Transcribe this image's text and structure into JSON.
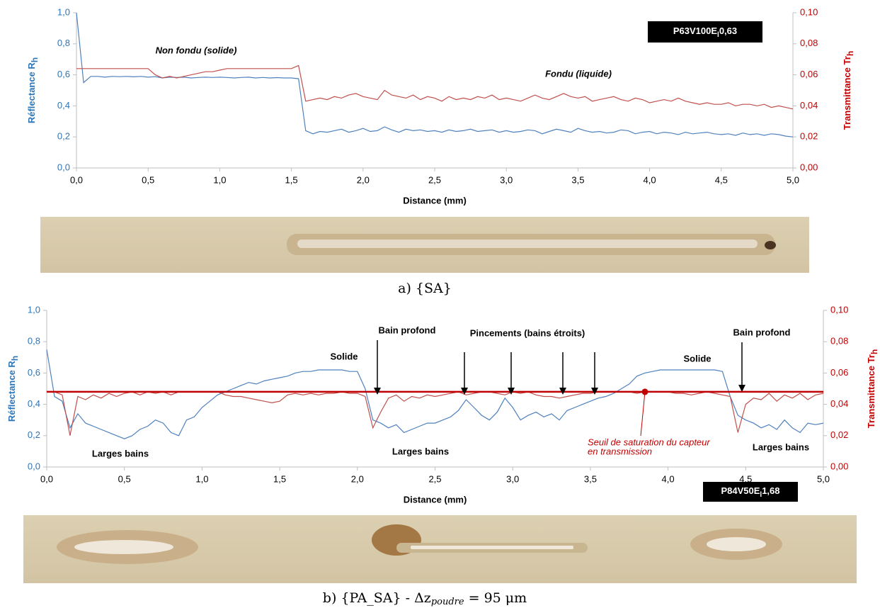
{
  "chart_data": [
    {
      "type": "line",
      "x": [
        0,
        0.05,
        0.1,
        0.15,
        0.2,
        0.25,
        0.3,
        0.35,
        0.4,
        0.45,
        0.5,
        0.55,
        0.6,
        0.65,
        0.7,
        0.75,
        0.8,
        0.85,
        0.9,
        0.95,
        1.0,
        1.05,
        1.1,
        1.15,
        1.2,
        1.25,
        1.3,
        1.35,
        1.4,
        1.45,
        1.5,
        1.55,
        1.6,
        1.65,
        1.7,
        1.75,
        1.8,
        1.85,
        1.9,
        1.95,
        2.0,
        2.05,
        2.1,
        2.15,
        2.2,
        2.25,
        2.3,
        2.35,
        2.4,
        2.45,
        2.5,
        2.55,
        2.6,
        2.65,
        2.7,
        2.75,
        2.8,
        2.85,
        2.9,
        2.95,
        3.0,
        3.05,
        3.1,
        3.15,
        3.2,
        3.25,
        3.3,
        3.35,
        3.4,
        3.45,
        3.5,
        3.55,
        3.6,
        3.65,
        3.7,
        3.75,
        3.8,
        3.85,
        3.9,
        3.95,
        4.0,
        4.05,
        4.1,
        4.15,
        4.2,
        4.25,
        4.3,
        4.35,
        4.4,
        4.45,
        4.5,
        4.55,
        4.6,
        4.65,
        4.7,
        4.75,
        4.8,
        4.85,
        4.9,
        4.95,
        5.0
      ],
      "series": [
        {
          "color": "#4f81bd",
          "values": [
            1.0,
            0.55,
            0.59,
            0.59,
            0.585,
            0.59,
            0.588,
            0.59,
            0.587,
            0.59,
            0.585,
            0.588,
            0.58,
            0.585,
            0.583,
            0.585,
            0.58,
            0.583,
            0.585,
            0.583,
            0.585,
            0.583,
            0.58,
            0.583,
            0.585,
            0.58,
            0.583,
            0.58,
            0.582,
            0.58,
            0.58,
            0.575,
            0.24,
            0.22,
            0.235,
            0.23,
            0.24,
            0.25,
            0.23,
            0.24,
            0.255,
            0.235,
            0.24,
            0.265,
            0.245,
            0.23,
            0.25,
            0.24,
            0.245,
            0.235,
            0.24,
            0.23,
            0.245,
            0.235,
            0.24,
            0.25,
            0.235,
            0.24,
            0.245,
            0.23,
            0.24,
            0.23,
            0.235,
            0.245,
            0.24,
            0.22,
            0.235,
            0.25,
            0.24,
            0.23,
            0.255,
            0.24,
            0.23,
            0.235,
            0.225,
            0.23,
            0.245,
            0.24,
            0.22,
            0.23,
            0.235,
            0.22,
            0.23,
            0.225,
            0.215,
            0.23,
            0.22,
            0.225,
            0.23,
            0.22,
            0.215,
            0.22,
            0.21,
            0.225,
            0.215,
            0.22,
            0.21,
            0.22,
            0.215,
            0.205,
            0.2
          ]
        },
        {
          "color": "#c0504d",
          "axis": "y2",
          "values": [
            0.064,
            0.064,
            0.064,
            0.064,
            0.064,
            0.064,
            0.064,
            0.064,
            0.064,
            0.064,
            0.064,
            0.06,
            0.058,
            0.059,
            0.058,
            0.059,
            0.06,
            0.061,
            0.062,
            0.062,
            0.063,
            0.064,
            0.064,
            0.064,
            0.064,
            0.064,
            0.064,
            0.064,
            0.064,
            0.064,
            0.064,
            0.066,
            0.043,
            0.044,
            0.045,
            0.044,
            0.046,
            0.045,
            0.047,
            0.048,
            0.046,
            0.045,
            0.044,
            0.05,
            0.047,
            0.046,
            0.045,
            0.047,
            0.044,
            0.046,
            0.045,
            0.043,
            0.046,
            0.044,
            0.045,
            0.044,
            0.046,
            0.045,
            0.047,
            0.044,
            0.045,
            0.044,
            0.043,
            0.045,
            0.047,
            0.045,
            0.044,
            0.046,
            0.048,
            0.046,
            0.045,
            0.046,
            0.043,
            0.044,
            0.045,
            0.046,
            0.044,
            0.043,
            0.045,
            0.044,
            0.042,
            0.043,
            0.044,
            0.043,
            0.045,
            0.043,
            0.042,
            0.041,
            0.042,
            0.041,
            0.041,
            0.042,
            0.04,
            0.041,
            0.041,
            0.04,
            0.041,
            0.039,
            0.04,
            0.039,
            0.038
          ]
        }
      ],
      "xlim": [
        0,
        5
      ],
      "ylim": [
        0,
        1
      ],
      "y2lim": [
        0,
        0.1
      ],
      "xticks": [
        {
          "value": 0,
          "label": "0,0"
        },
        {
          "value": 0.5,
          "label": "0,5"
        },
        {
          "value": 1,
          "label": "1,0"
        },
        {
          "value": 1.5,
          "label": "1,5"
        },
        {
          "value": 2,
          "label": "2,0"
        },
        {
          "value": 2.5,
          "label": "2,5"
        },
        {
          "value": 3,
          "label": "3,0"
        },
        {
          "value": 3.5,
          "label": "3,5"
        },
        {
          "value": 4,
          "label": "4,0"
        },
        {
          "value": 4.5,
          "label": "4,5"
        },
        {
          "value": 5,
          "label": "5,0"
        }
      ],
      "yticks": [
        {
          "value": 0,
          "label": "0,0"
        },
        {
          "value": 0.2,
          "label": "0,2"
        },
        {
          "value": 0.4,
          "label": "0,4"
        },
        {
          "value": 0.6,
          "label": "0,6"
        },
        {
          "value": 0.8,
          "label": "0,8"
        },
        {
          "value": 1,
          "label": "1,0"
        }
      ],
      "y2ticks": [
        {
          "value": 0,
          "label": "0,00"
        },
        {
          "value": 0.02,
          "label": "0,02"
        },
        {
          "value": 0.04,
          "label": "0,04"
        },
        {
          "value": 0.06,
          "label": "0,06"
        },
        {
          "value": 0.08,
          "label": "0,08"
        },
        {
          "value": 0.1,
          "label": "0,10"
        }
      ],
      "x_label": "Distance (mm)",
      "y_label": {
        "text": "Réflectance R",
        "sub": "h"
      },
      "y2_label": {
        "text": "Transmittance Tr",
        "sub": "h"
      },
      "tag": {
        "text": "P63V100E",
        "sub": "l",
        "rest": "0,63"
      },
      "annotations": [
        "Non fondu (solide)",
        "Fondu (liquide)"
      ]
    },
    {
      "type": "line",
      "x": [
        0,
        0.05,
        0.1,
        0.15,
        0.2,
        0.25,
        0.3,
        0.35,
        0.4,
        0.45,
        0.5,
        0.55,
        0.6,
        0.65,
        0.7,
        0.75,
        0.8,
        0.85,
        0.9,
        0.95,
        1.0,
        1.05,
        1.1,
        1.15,
        1.2,
        1.25,
        1.3,
        1.35,
        1.4,
        1.45,
        1.5,
        1.55,
        1.6,
        1.65,
        1.7,
        1.75,
        1.8,
        1.85,
        1.9,
        1.95,
        2.0,
        2.05,
        2.1,
        2.15,
        2.2,
        2.25,
        2.3,
        2.35,
        2.4,
        2.45,
        2.5,
        2.55,
        2.6,
        2.65,
        2.7,
        2.75,
        2.8,
        2.85,
        2.9,
        2.95,
        3.0,
        3.05,
        3.1,
        3.15,
        3.2,
        3.25,
        3.3,
        3.35,
        3.4,
        3.45,
        3.5,
        3.55,
        3.6,
        3.65,
        3.7,
        3.75,
        3.8,
        3.85,
        3.9,
        3.95,
        4.0,
        4.05,
        4.1,
        4.15,
        4.2,
        4.25,
        4.3,
        4.35,
        4.4,
        4.45,
        4.5,
        4.55,
        4.6,
        4.65,
        4.7,
        4.75,
        4.8,
        4.85,
        4.9,
        4.95,
        5.0
      ],
      "series": [
        {
          "color": "#4f81bd",
          "values": [
            0.75,
            0.45,
            0.42,
            0.25,
            0.34,
            0.28,
            0.26,
            0.24,
            0.22,
            0.2,
            0.18,
            0.2,
            0.24,
            0.26,
            0.3,
            0.28,
            0.22,
            0.2,
            0.3,
            0.32,
            0.38,
            0.42,
            0.46,
            0.48,
            0.5,
            0.52,
            0.54,
            0.53,
            0.55,
            0.56,
            0.57,
            0.58,
            0.6,
            0.61,
            0.61,
            0.62,
            0.62,
            0.62,
            0.62,
            0.61,
            0.61,
            0.5,
            0.3,
            0.28,
            0.25,
            0.27,
            0.22,
            0.24,
            0.26,
            0.28,
            0.28,
            0.3,
            0.32,
            0.36,
            0.43,
            0.38,
            0.33,
            0.3,
            0.35,
            0.44,
            0.38,
            0.3,
            0.33,
            0.35,
            0.32,
            0.34,
            0.3,
            0.36,
            0.38,
            0.4,
            0.42,
            0.44,
            0.45,
            0.47,
            0.5,
            0.53,
            0.58,
            0.6,
            0.61,
            0.62,
            0.62,
            0.62,
            0.62,
            0.62,
            0.62,
            0.62,
            0.62,
            0.61,
            0.45,
            0.33,
            0.3,
            0.28,
            0.25,
            0.27,
            0.24,
            0.3,
            0.25,
            0.22,
            0.28,
            0.27,
            0.28
          ]
        },
        {
          "color": "#c0504d",
          "axis": "y2",
          "values": [
            0.048,
            0.048,
            0.046,
            0.02,
            0.045,
            0.043,
            0.046,
            0.044,
            0.047,
            0.045,
            0.047,
            0.048,
            0.046,
            0.048,
            0.047,
            0.048,
            0.046,
            0.048,
            0.048,
            0.048,
            0.048,
            0.048,
            0.048,
            0.046,
            0.045,
            0.045,
            0.044,
            0.043,
            0.042,
            0.041,
            0.042,
            0.046,
            0.047,
            0.046,
            0.047,
            0.046,
            0.047,
            0.047,
            0.048,
            0.047,
            0.047,
            0.045,
            0.025,
            0.035,
            0.044,
            0.046,
            0.042,
            0.045,
            0.044,
            0.046,
            0.045,
            0.046,
            0.047,
            0.048,
            0.046,
            0.047,
            0.048,
            0.048,
            0.047,
            0.046,
            0.048,
            0.047,
            0.048,
            0.046,
            0.045,
            0.045,
            0.044,
            0.045,
            0.046,
            0.047,
            0.047,
            0.048,
            0.048,
            0.048,
            0.048,
            0.048,
            0.047,
            0.048,
            0.048,
            0.048,
            0.048,
            0.047,
            0.047,
            0.046,
            0.047,
            0.048,
            0.047,
            0.046,
            0.045,
            0.022,
            0.04,
            0.044,
            0.043,
            0.047,
            0.042,
            0.046,
            0.044,
            0.047,
            0.043,
            0.046,
            0.047
          ]
        }
      ],
      "threshold": {
        "value": 0.048,
        "color": "#c00000",
        "label": [
          "Seuil de saturation du capteur",
          "en transmission"
        ]
      },
      "xlim": [
        0,
        5
      ],
      "ylim": [
        0,
        1
      ],
      "y2lim": [
        0,
        0.1
      ],
      "xticks": [
        {
          "value": 0,
          "label": "0,0"
        },
        {
          "value": 0.5,
          "label": "0,5"
        },
        {
          "value": 1,
          "label": "1,0"
        },
        {
          "value": 1.5,
          "label": "1,5"
        },
        {
          "value": 2,
          "label": "2,0"
        },
        {
          "value": 2.5,
          "label": "2,5"
        },
        {
          "value": 3,
          "label": "3,0"
        },
        {
          "value": 3.5,
          "label": "3,5"
        },
        {
          "value": 4,
          "label": "4,0"
        },
        {
          "value": 4.5,
          "label": "4,5"
        },
        {
          "value": 5,
          "label": "5,0"
        }
      ],
      "yticks": [
        {
          "value": 0,
          "label": "0,0"
        },
        {
          "value": 0.2,
          "label": "0,2"
        },
        {
          "value": 0.4,
          "label": "0,4"
        },
        {
          "value": 0.6,
          "label": "0,6"
        },
        {
          "value": 0.8,
          "label": "0,8"
        },
        {
          "value": 1,
          "label": "1,0"
        }
      ],
      "y2ticks": [
        {
          "value": 0,
          "label": "0,00"
        },
        {
          "value": 0.02,
          "label": "0,02"
        },
        {
          "value": 0.04,
          "label": "0,04"
        },
        {
          "value": 0.06,
          "label": "0,06"
        },
        {
          "value": 0.08,
          "label": "0,08"
        },
        {
          "value": 0.1,
          "label": "0,10"
        }
      ],
      "x_label": "Distance (mm)",
      "y_label": {
        "text": "Réflectance R",
        "sub": "h"
      },
      "y2_label": {
        "text": "Transmittance Tr",
        "sub": "h"
      },
      "tag": {
        "text": "P84V50E",
        "sub": "l",
        "rest": "1,68"
      },
      "annotations": [
        "Bain profond",
        "Pincements (bains étroits)",
        "Bain profond",
        "Solide",
        "Solide",
        "Larges bains",
        "Larges bains",
        "Larges bains"
      ]
    }
  ],
  "captions": [
    {
      "text": "a) {SA}"
    },
    {
      "text": "b)    {PA_SA} - Δz",
      "sub": "poudre",
      "rest": " = 95 μm"
    }
  ]
}
